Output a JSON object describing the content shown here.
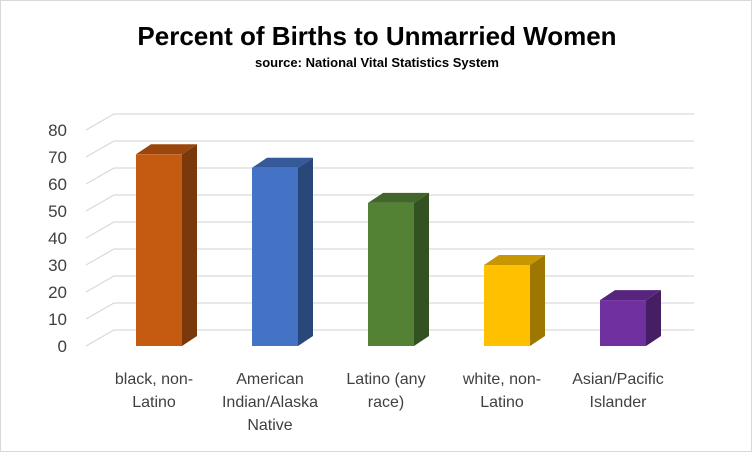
{
  "chart_data": {
    "type": "bar",
    "title": "Percent of Births to Unmarried Women",
    "subtitle": "source: National Vital Statistics System",
    "xlabel": "",
    "ylabel": "",
    "ylim": [
      0,
      80
    ],
    "yticks": [
      0,
      10,
      20,
      30,
      40,
      50,
      60,
      70,
      80
    ],
    "grid": true,
    "categories": [
      [
        "black, non-",
        "Latino"
      ],
      [
        "American",
        "Indian/Alaska",
        "Native"
      ],
      [
        "Latino (any",
        "race)"
      ],
      [
        "white, non-",
        "Latino"
      ],
      [
        "Asian/Pacific",
        "Islander"
      ]
    ],
    "values": [
      71,
      66,
      53,
      30,
      17
    ],
    "colors": [
      "#c55a11",
      "#4472c4",
      "#548235",
      "#ffc000",
      "#7030a0"
    ]
  }
}
